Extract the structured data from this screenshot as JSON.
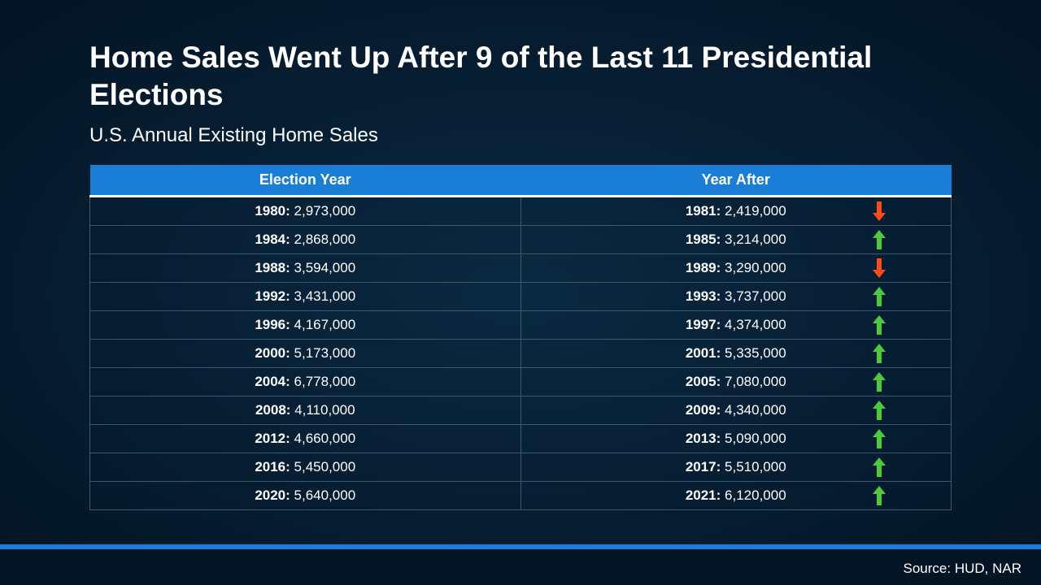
{
  "colors": {
    "background_center": "#0a2942",
    "background_edge": "#031424",
    "header_bg": "#1a7ed6",
    "header_underline": "#ffffff",
    "cell_border": "#3b5a70",
    "text": "#ffffff",
    "up_arrow": "#4fc93c",
    "down_arrow": "#ff4a1a",
    "footer_bar": "#031424",
    "footer_accent": "#1a7ed6"
  },
  "typography": {
    "title_fontsize": 37,
    "subtitle_fontsize": 24,
    "header_fontsize": 18,
    "cell_fontsize": 17,
    "source_fontsize": 17
  },
  "title": "Home Sales Went Up After 9 of the Last 11 Presidential Elections",
  "subtitle": "U.S. Annual Existing Home Sales",
  "table": {
    "columns": [
      "Election Year",
      "Year After"
    ],
    "rows": [
      {
        "election_year": "1980:",
        "election_value": "2,973,000",
        "after_year": "1981:",
        "after_value": "2,419,000",
        "direction": "down"
      },
      {
        "election_year": "1984:",
        "election_value": "2,868,000",
        "after_year": "1985:",
        "after_value": "3,214,000",
        "direction": "up"
      },
      {
        "election_year": "1988:",
        "election_value": "3,594,000",
        "after_year": "1989:",
        "after_value": "3,290,000",
        "direction": "down"
      },
      {
        "election_year": "1992:",
        "election_value": "3,431,000",
        "after_year": "1993:",
        "after_value": "3,737,000",
        "direction": "up"
      },
      {
        "election_year": "1996:",
        "election_value": "4,167,000",
        "after_year": "1997:",
        "after_value": "4,374,000",
        "direction": "up"
      },
      {
        "election_year": "2000:",
        "election_value": "5,173,000",
        "after_year": "2001:",
        "after_value": "5,335,000",
        "direction": "up"
      },
      {
        "election_year": "2004:",
        "election_value": "6,778,000",
        "after_year": "2005:",
        "after_value": "7,080,000",
        "direction": "up"
      },
      {
        "election_year": "2008:",
        "election_value": "4,110,000",
        "after_year": "2009:",
        "after_value": "4,340,000",
        "direction": "up"
      },
      {
        "election_year": "2012:",
        "election_value": "4,660,000",
        "after_year": "2013:",
        "after_value": "5,090,000",
        "direction": "up"
      },
      {
        "election_year": "2016:",
        "election_value": "5,450,000",
        "after_year": "2017:",
        "after_value": "5,510,000",
        "direction": "up"
      },
      {
        "election_year": "2020:",
        "election_value": "5,640,000",
        "after_year": "2021:",
        "after_value": "6,120,000",
        "direction": "up"
      }
    ]
  },
  "source": "Source: HUD, NAR"
}
